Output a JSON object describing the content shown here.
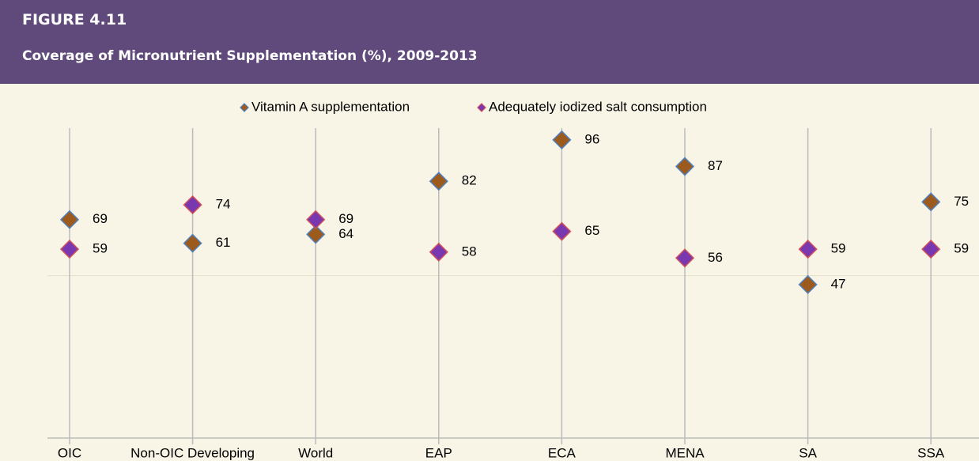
{
  "chart_data": {
    "type": "dot",
    "figure_label": "FIGURE 4.11",
    "title": "Coverage of Micronutrient Supplementation (%), 2009-2013",
    "categories": [
      "OIC",
      "Non-OIC Developing",
      "World",
      "EAP",
      "ECA",
      "MENA",
      "SA",
      "SSA"
    ],
    "series": [
      {
        "name": "Vitamin A supplementation",
        "color": "#9c5a1c",
        "edge": "#4f81bd",
        "values": [
          69,
          61,
          64,
          82,
          96,
          87,
          47,
          75
        ]
      },
      {
        "name": "Adequately iodized salt consumption",
        "color": "#7a38b0",
        "edge": "#d0505a",
        "values": [
          59,
          74,
          69,
          58,
          65,
          56,
          59,
          59
        ]
      }
    ],
    "ylim": [
      -5,
      100
    ],
    "yticks": [
      50
    ],
    "grid": true,
    "legend": "top"
  }
}
